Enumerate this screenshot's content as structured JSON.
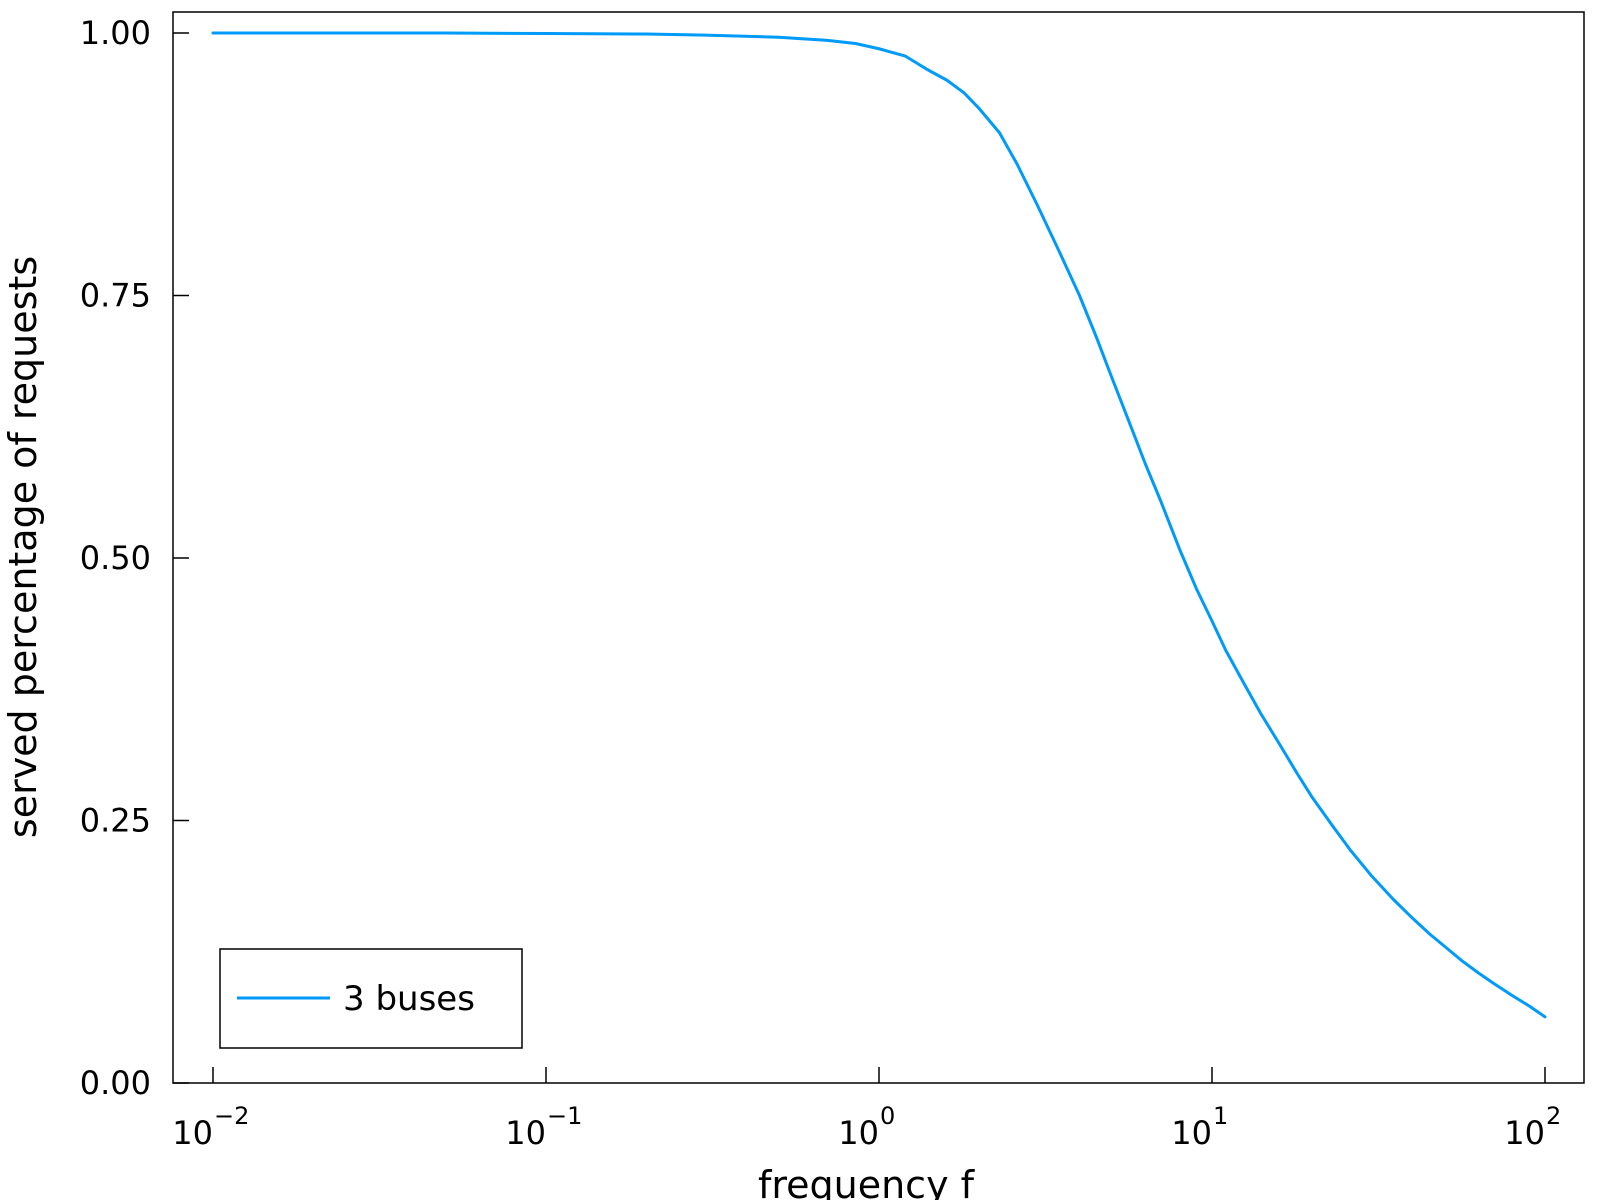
{
  "chart_data": {
    "type": "line",
    "title": "",
    "xlabel": "frequency f",
    "ylabel": "served percentage of requests",
    "xscale": "log",
    "xlim": [
      0.01,
      100
    ],
    "ylim": [
      0,
      1.02
    ],
    "grid": false,
    "legend_position": "bottom-left",
    "x_ticks": [
      {
        "value": 0.01,
        "base": "10",
        "exponent": "−2"
      },
      {
        "value": 0.1,
        "base": "10",
        "exponent": "−1"
      },
      {
        "value": 1,
        "base": "10",
        "exponent": "0"
      },
      {
        "value": 10,
        "base": "10",
        "exponent": "1"
      },
      {
        "value": 100,
        "base": "10",
        "exponent": "2"
      }
    ],
    "y_ticks": [
      {
        "value": 0,
        "label": "0.00"
      },
      {
        "value": 0.25,
        "label": "0.25"
      },
      {
        "value": 0.5,
        "label": "0.50"
      },
      {
        "value": 0.75,
        "label": "0.75"
      },
      {
        "value": 1,
        "label": "1.00"
      }
    ],
    "series": [
      {
        "name": "3 buses",
        "color": "#009af9",
        "x": [
          0.01,
          0.05,
          0.1,
          0.2,
          0.3,
          0.5,
          0.7,
          0.85,
          1.0,
          1.2,
          1.4,
          1.6,
          1.8,
          2.0,
          2.3,
          2.6,
          3.0,
          3.5,
          4.0,
          4.5,
          5.0,
          5.6,
          6.3,
          7.0,
          8.0,
          9.0,
          10.0,
          11.0,
          12.5,
          14.0,
          16.0,
          18.0,
          20.0,
          23.0,
          26.0,
          30.0,
          35.0,
          40.0,
          45.0,
          50.0,
          56.0,
          63.0,
          70.0,
          80.0,
          90.0,
          100.0
        ],
        "y": [
          1.0,
          1.0,
          0.9995,
          0.999,
          0.998,
          0.996,
          0.993,
          0.99,
          0.985,
          0.978,
          0.965,
          0.955,
          0.943,
          0.928,
          0.905,
          0.875,
          0.835,
          0.79,
          0.75,
          0.71,
          0.672,
          0.632,
          0.59,
          0.555,
          0.508,
          0.47,
          0.44,
          0.412,
          0.38,
          0.352,
          0.322,
          0.295,
          0.272,
          0.245,
          0.222,
          0.198,
          0.175,
          0.157,
          0.142,
          0.13,
          0.117,
          0.105,
          0.095,
          0.083,
          0.073,
          0.063
        ]
      }
    ]
  }
}
